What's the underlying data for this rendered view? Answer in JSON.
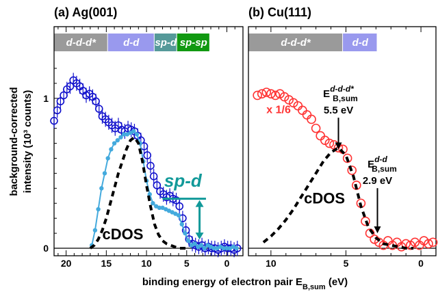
{
  "chart_data": [
    {
      "type": "scatter",
      "title": "(a) Ag(001)",
      "xlabel": "binding energy of electron pair E_B,sum (eV)",
      "ylabel": "background-corrected intensity (10³ counts)",
      "xlim": [
        21.5,
        -2
      ],
      "ylim": [
        -0.05,
        1.3
      ],
      "x_ticks": [
        "20",
        "15",
        "10",
        "5",
        "0"
      ],
      "x_tick_values": [
        20,
        15,
        10,
        5,
        0
      ],
      "y_ticks": [
        "0",
        "1"
      ],
      "y_tick_values": [
        0,
        1
      ],
      "bands": [
        {
          "label": "d-d-d*",
          "x_from": 21.5,
          "x_to": 14.8,
          "color": "#9a9a9a"
        },
        {
          "label": "d-d",
          "x_from": 14.8,
          "x_to": 9.0,
          "color": "#9999ee"
        },
        {
          "label": "sp-d",
          "x_from": 9.0,
          "x_to": 6.2,
          "color": "#559999"
        },
        {
          "label": "sp-sp",
          "x_from": 6.2,
          "x_to": 2.1,
          "color": "#119911"
        }
      ],
      "series": [
        {
          "name": "",
          "style": "open circles with error bars",
          "color": "#1010cc",
          "x": [
            21.5,
            21.1,
            20.7,
            20.3,
            19.9,
            19.5,
            19.1,
            18.7,
            18.3,
            17.9,
            17.5,
            17.1,
            16.7,
            16.3,
            15.9,
            15.5,
            15.1,
            14.7,
            14.3,
            13.9,
            13.5,
            13.1,
            12.7,
            12.3,
            11.9,
            11.5,
            11.1,
            10.7,
            10.3,
            9.9,
            9.5,
            9.1,
            8.7,
            8.3,
            7.9,
            7.5,
            7.1,
            6.7,
            6.3,
            5.9,
            5.5,
            5.1,
            4.7,
            4.3,
            3.9,
            3.5,
            3.1,
            2.7,
            2.3,
            1.9,
            1.5,
            1.1,
            0.7,
            0.3,
            -0.1,
            -0.5,
            -0.9,
            -1.3
          ],
          "y": [
            0.85,
            0.92,
            0.98,
            1.02,
            1.06,
            1.08,
            1.12,
            1.1,
            1.08,
            1.05,
            1.02,
            1.03,
            1.01,
            0.98,
            0.93,
            0.88,
            0.86,
            0.84,
            0.82,
            0.8,
            0.82,
            0.79,
            0.78,
            0.8,
            0.79,
            0.78,
            0.75,
            0.72,
            0.68,
            0.62,
            0.55,
            0.48,
            0.42,
            0.38,
            0.36,
            0.34,
            0.35,
            0.33,
            0.32,
            0.28,
            0.2,
            0.12,
            0.06,
            0.03,
            0.02,
            0.01,
            0.02,
            0.0,
            0.01,
            0.0,
            0.0,
            -0.01,
            0.0,
            0.01,
            0.0,
            0.0,
            -0.01,
            0.0
          ],
          "error": 0.05
        },
        {
          "name": "",
          "style": "filled circles with line",
          "color": "#44aadd",
          "x": [
            16.8,
            16.4,
            16.0,
            15.6,
            15.2,
            14.8,
            14.4,
            14.0,
            13.6,
            13.2,
            12.8,
            12.4,
            12.0,
            11.6,
            11.2,
            10.8,
            10.4,
            10.0,
            9.6,
            9.2,
            8.8,
            8.4,
            8.0,
            7.6,
            7.2,
            6.8,
            6.4,
            6.0,
            5.6,
            5.2,
            4.8,
            4.4,
            4.0,
            3.6,
            3.2,
            2.8,
            2.4,
            2.0,
            1.6,
            1.2,
            0.8,
            0.4,
            0.0,
            -0.4,
            -0.8,
            -1.2
          ],
          "y": [
            0.02,
            0.12,
            0.26,
            0.4,
            0.5,
            0.6,
            0.66,
            0.7,
            0.72,
            0.74,
            0.76,
            0.76,
            0.77,
            0.78,
            0.76,
            0.7,
            0.58,
            0.45,
            0.36,
            0.3,
            0.28,
            0.27,
            0.27,
            0.26,
            0.25,
            0.24,
            0.23,
            0.22,
            0.16,
            0.1,
            0.05,
            0.02,
            0.03,
            0.01,
            0.02,
            0.0,
            0.02,
            0.01,
            0.0,
            0.0,
            0.01,
            0.0,
            0.0,
            0.0,
            0.01,
            0.0
          ]
        },
        {
          "name": "cDOS",
          "style": "dashed",
          "color": "#000000",
          "x": [
            17.0,
            16.5,
            16.0,
            15.5,
            15.0,
            14.5,
            14.0,
            13.5,
            13.0,
            12.5,
            12.0,
            11.5,
            11.0,
            10.5,
            10.0,
            9.5,
            9.0,
            8.5,
            8.0,
            7.5,
            7.0,
            6.5,
            6.0,
            5.5,
            5.0
          ],
          "y": [
            0.0,
            0.02,
            0.06,
            0.12,
            0.2,
            0.3,
            0.4,
            0.5,
            0.58,
            0.66,
            0.72,
            0.74,
            0.7,
            0.58,
            0.42,
            0.28,
            0.16,
            0.09,
            0.05,
            0.03,
            0.02,
            0.01,
            0.0,
            0.0,
            0.0
          ]
        }
      ],
      "annotations": [
        {
          "text": "cDOS",
          "x": 15.5,
          "y": 0.06,
          "color": "#000000"
        },
        {
          "text": "sp-d",
          "x": 7.8,
          "y": 0.41,
          "color": "#119999"
        }
      ],
      "marker_level": {
        "x_from": 8.0,
        "x_to": 2.6,
        "y": 0.33,
        "arrow_x": 3.4,
        "arrow_y_from": 0.05,
        "color": "#119999"
      }
    },
    {
      "type": "scatter",
      "title": "(b) Cu(111)",
      "xlabel": "binding energy of electron pair E_B,sum (eV)",
      "ylabel": "",
      "xlim": [
        11.5,
        -1.0
      ],
      "ylim": [
        -0.05,
        1.3
      ],
      "x_ticks": [
        "10",
        "5",
        "0"
      ],
      "x_tick_values": [
        10,
        5,
        0
      ],
      "bands": [
        {
          "label": "d-d-d*",
          "x_from": 11.5,
          "x_to": 5.2,
          "color": "#9a9a9a"
        },
        {
          "label": "d-d",
          "x_from": 5.2,
          "x_to": 2.9,
          "color": "#9999ee"
        }
      ],
      "series": [
        {
          "name": "x 1/6",
          "style": "open circles",
          "color": "#ff3333",
          "x": [
            10.9,
            10.6,
            10.3,
            10.0,
            9.7,
            9.4,
            9.1,
            8.8,
            8.5,
            8.2,
            7.9,
            7.6,
            7.3,
            7.0,
            6.7,
            6.4,
            6.1,
            5.8,
            5.5,
            5.2,
            4.9,
            4.6,
            4.3,
            4.0,
            3.7,
            3.4,
            3.1,
            2.8,
            2.5,
            2.2,
            1.9,
            1.6,
            1.3,
            1.0,
            0.7,
            0.4,
            0.1,
            -0.2,
            -0.5,
            -0.8
          ],
          "y": [
            1.02,
            1.03,
            1.04,
            1.03,
            1.02,
            1.03,
            1.01,
            0.99,
            0.97,
            0.95,
            0.92,
            0.89,
            0.86,
            0.8,
            0.75,
            0.72,
            0.7,
            0.69,
            0.67,
            0.66,
            0.6,
            0.52,
            0.42,
            0.3,
            0.18,
            0.1,
            0.06,
            0.04,
            0.02,
            0.05,
            0.02,
            0.04,
            0.01,
            0.03,
            0.02,
            0.04,
            0.02,
            0.05,
            0.03,
            0.04
          ]
        },
        {
          "name": "cDOS",
          "style": "dashed",
          "color": "#000000",
          "x": [
            10.5,
            10.0,
            9.5,
            9.0,
            8.5,
            8.0,
            7.5,
            7.0,
            6.5,
            6.0,
            5.5,
            5.0,
            4.5,
            4.0,
            3.5,
            3.0,
            2.5,
            2.0,
            1.5,
            1.0,
            0.5
          ],
          "y": [
            0.04,
            0.08,
            0.13,
            0.19,
            0.26,
            0.34,
            0.42,
            0.5,
            0.58,
            0.64,
            0.67,
            0.62,
            0.48,
            0.28,
            0.14,
            0.07,
            0.03,
            0.02,
            0.01,
            0.0,
            0.0
          ]
        }
      ],
      "annotations": [
        {
          "text": "x 1/6",
          "x": 10.3,
          "y": 0.9,
          "color": "#ff3333"
        },
        {
          "text": "cDOS",
          "x": 7.8,
          "y": 0.3,
          "color": "#000000"
        },
        {
          "label_main": "E",
          "label_sub": "B,sum",
          "label_sup": "d-d-d*",
          "value": "5.5 eV",
          "arrow_x": 5.5,
          "arrow_y_top": 0.88,
          "arrow_y_bottom": 0.66
        },
        {
          "label_main": "E",
          "label_sub": "B,sum",
          "label_sup": "d-d",
          "value": "2.9 eV",
          "arrow_x": 2.9,
          "arrow_y_top": 0.41,
          "arrow_y_bottom": 0.1
        }
      ]
    }
  ]
}
